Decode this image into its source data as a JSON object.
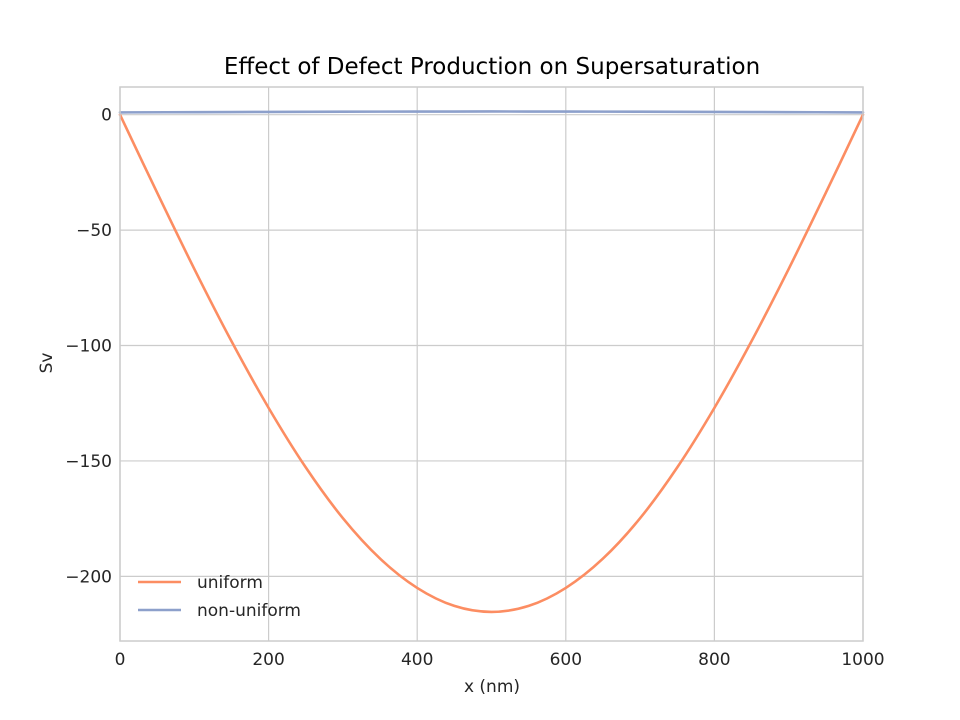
{
  "chart_data": {
    "type": "line",
    "title": "Effect of Defect Production on Supersaturation",
    "xlabel": "x (nm)",
    "ylabel": "Sv",
    "xlim": [
      0,
      1000
    ],
    "ylim": [
      -228,
      12
    ],
    "xticks": [
      0,
      200,
      400,
      600,
      800,
      1000
    ],
    "yticks": [
      0,
      -50,
      -100,
      -150,
      -200
    ],
    "xtick_labels": [
      "0",
      "200",
      "400",
      "600",
      "800",
      "1000"
    ],
    "ytick_labels": [
      "0",
      "−50",
      "−100",
      "−150",
      "−200"
    ],
    "grid": true,
    "legend_position": "lower-left",
    "series": [
      {
        "name": "uniform",
        "color": "#fc8d62",
        "x": [
          0,
          50,
          100,
          150,
          200,
          250,
          300,
          350,
          400,
          450,
          500,
          550,
          600,
          650,
          700,
          750,
          800,
          850,
          900,
          950,
          1000
        ],
        "y": [
          0,
          -33.8,
          -66.8,
          -98.1,
          -127.0,
          -152.8,
          -174.8,
          -192.3,
          -205.0,
          -212.8,
          -215.4,
          -212.8,
          -205.0,
          -192.3,
          -174.8,
          -152.8,
          -127.0,
          -98.1,
          -66.8,
          -33.8,
          0
        ]
      },
      {
        "name": "non-uniform",
        "color": "#8da0cb",
        "x": [
          0,
          100,
          200,
          300,
          400,
          500,
          600,
          700,
          800,
          900,
          1000
        ],
        "y": [
          1.0,
          1.1,
          1.2,
          1.3,
          1.35,
          1.4,
          1.35,
          1.3,
          1.2,
          1.1,
          1.0
        ]
      }
    ]
  }
}
